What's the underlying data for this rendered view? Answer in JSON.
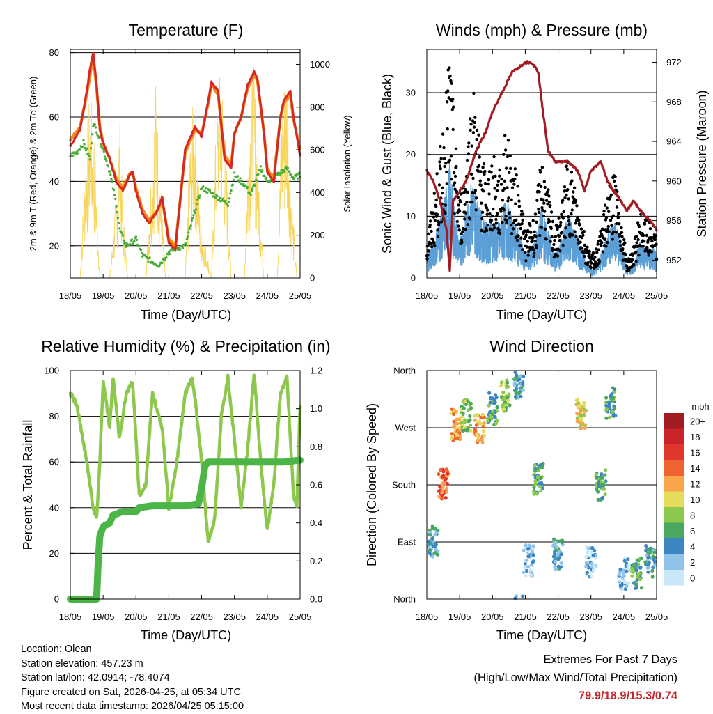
{
  "panels": {
    "temperature": {
      "title": "Temperature (F)",
      "ylabel_left": "2m & 9m T (Red, Orange) & 2m Td (Green)",
      "ylabel_right": "Solar Insolation (Yellow)",
      "xlabel": "Time (Day/UTC)"
    },
    "winds": {
      "title": "Winds (mph) & Pressure (mb)",
      "ylabel_left": "Sonic Wind & Gust (Blue, Black)",
      "ylabel_right": "Station Pressure (Maroon)",
      "xlabel": "Time (Day/UTC)"
    },
    "humidity": {
      "title": "Relative Humidity (%) & Precipitation (in)",
      "ylabel_left": "Percent & Total Rainfall",
      "xlabel": "Time (Day/UTC)"
    },
    "direction": {
      "title": "Wind Direction",
      "ylabel_left": "Direction (Colored By Speed)",
      "xlabel": "Time (Day/UTC)"
    }
  },
  "colors": {
    "temp2m": "#d42a22",
    "temp9m": "#f58a1f",
    "dewpoint": "#4cae3a",
    "solar": "#f7d55a",
    "gust": "#000000",
    "wind": "#5b9fd6",
    "pressure": "#a11c22",
    "rh": "#8cc84b",
    "precip": "#4cb547"
  },
  "chart_data": [
    {
      "type": "line",
      "title": "Temperature (F)",
      "xlabel": "Time (Day/UTC)",
      "ylabel": "2m & 9m T (Red, Orange) & 2m Td (Green)",
      "ylabel_right": "Solar Insolation (Yellow)",
      "x_ticks": [
        "18/05",
        "19/05",
        "20/05",
        "21/05",
        "22/05",
        "23/05",
        "24/05",
        "25/05"
      ],
      "xlim": [
        0,
        7
      ],
      "ylim": [
        10,
        81
      ],
      "y_ticks": [
        20,
        40,
        60,
        80
      ],
      "ylim_right": [
        0,
        1070
      ],
      "y_ticks_right": [
        0,
        200,
        400,
        600,
        800,
        1000
      ],
      "series": [
        {
          "name": "2m T",
          "x": [
            0,
            0.3,
            0.5,
            0.6,
            0.7,
            0.8,
            0.9,
            1.0,
            1.2,
            1.4,
            1.6,
            1.8,
            1.9,
            2.0,
            2.2,
            2.4,
            2.6,
            2.8,
            3.0,
            3.2,
            3.5,
            3.8,
            4.0,
            4.2,
            4.3,
            4.5,
            4.7,
            4.9,
            5.0,
            5.2,
            5.4,
            5.6,
            5.7,
            5.9,
            6.0,
            6.2,
            6.4,
            6.5,
            6.7,
            6.8,
            7.0
          ],
          "values": [
            51,
            56,
            68,
            75,
            80,
            70,
            56,
            52,
            47,
            40,
            37,
            42,
            43,
            37,
            30,
            27,
            30,
            35,
            21,
            19,
            50,
            57,
            54,
            65,
            71,
            68,
            47,
            44,
            55,
            60,
            70,
            74,
            72,
            55,
            43,
            40,
            60,
            65,
            68,
            60,
            48
          ]
        },
        {
          "name": "9m T",
          "x": [
            0,
            0.3,
            0.5,
            0.6,
            0.7,
            0.8,
            0.9,
            1.0,
            1.2,
            1.4,
            1.6,
            1.8,
            1.9,
            2.0,
            2.2,
            2.4,
            2.6,
            2.8,
            3.0,
            3.2,
            3.5,
            3.8,
            4.0,
            4.2,
            4.3,
            4.5,
            4.7,
            4.9,
            5.0,
            5.2,
            5.4,
            5.6,
            5.7,
            5.9,
            6.0,
            6.2,
            6.4,
            6.5,
            6.7,
            6.8,
            7.0
          ],
          "values": [
            53,
            57,
            67,
            73,
            78,
            69,
            57,
            52,
            47,
            41,
            38,
            42,
            43,
            38,
            31,
            28,
            30,
            34,
            22,
            20,
            49,
            56,
            55,
            64,
            70,
            67,
            48,
            45,
            55,
            60,
            69,
            73,
            71,
            55,
            44,
            41,
            60,
            64,
            67,
            59,
            50
          ]
        },
        {
          "name": "2m Td",
          "x": [
            0,
            0.2,
            0.4,
            0.6,
            0.7,
            0.8,
            1.0,
            1.2,
            1.4,
            1.5,
            1.7,
            2.0,
            2.2,
            2.5,
            2.7,
            3.0,
            3.2,
            3.5,
            3.8,
            4.0,
            4.2,
            4.5,
            4.8,
            5.0,
            5.3,
            5.5,
            5.8,
            6.0,
            6.3,
            6.6,
            6.8,
            7.0
          ],
          "values": [
            48,
            49,
            52,
            47,
            58,
            56,
            50,
            43,
            33,
            25,
            20,
            22,
            17,
            15,
            14,
            18,
            19,
            20,
            31,
            38,
            37,
            35,
            33,
            42,
            39,
            36,
            44,
            40,
            42,
            44,
            41,
            42
          ]
        },
        {
          "name": "Solar Insolation",
          "axis": "right",
          "x": [
            0,
            0.3,
            0.45,
            0.6,
            0.75,
            0.9,
            1.2,
            1.4,
            1.5,
            1.6,
            1.75,
            1.9,
            2.3,
            2.45,
            2.6,
            2.75,
            2.9,
            3.3,
            3.5,
            3.65,
            3.8,
            3.95,
            4.3,
            4.45,
            4.6,
            4.75,
            4.9,
            5.3,
            5.45,
            5.6,
            5.75,
            5.9,
            6.3,
            6.45,
            6.6,
            6.75,
            6.9,
            7.0
          ],
          "values": [
            0,
            0,
            600,
            900,
            650,
            0,
            0,
            400,
            800,
            350,
            0,
            0,
            0,
            500,
            950,
            450,
            0,
            0,
            0,
            700,
            900,
            300,
            0,
            800,
            1050,
            600,
            0,
            0,
            850,
            1000,
            500,
            0,
            0,
            900,
            1050,
            400,
            0,
            0
          ]
        }
      ]
    },
    {
      "type": "scatter",
      "title": "Winds (mph) & Pressure (mb)",
      "xlabel": "Time (Day/UTC)",
      "ylabel": "Sonic Wind & Gust (Blue, Black)",
      "ylabel_right": "Station Pressure (Maroon)",
      "x_ticks": [
        "18/05",
        "19/05",
        "20/05",
        "21/05",
        "22/05",
        "23/05",
        "24/05",
        "25/05"
      ],
      "xlim": [
        0,
        7
      ],
      "ylim": [
        0,
        37
      ],
      "y_ticks": [
        0,
        10,
        20,
        30
      ],
      "ylim_right": [
        950.2,
        973.3
      ],
      "y_ticks_right": [
        952,
        956,
        960,
        964,
        968,
        972
      ],
      "series": [
        {
          "name": "Gust",
          "x": [
            0,
            0.2,
            0.4,
            0.6,
            0.7,
            0.8,
            1.0,
            1.2,
            1.4,
            1.6,
            1.8,
            2.0,
            2.2,
            2.4,
            2.6,
            2.8,
            3.0,
            3.3,
            3.5,
            3.7,
            3.9,
            4.1,
            4.3,
            4.5,
            4.7,
            4.9,
            5.1,
            5.3,
            5.5,
            5.7,
            5.9,
            6.1,
            6.3,
            6.5,
            6.7,
            6.9,
            7.0
          ],
          "values": [
            5,
            10,
            16,
            24,
            30,
            22,
            10,
            16,
            25,
            18,
            13,
            16,
            13,
            19,
            15,
            12,
            6,
            8,
            16,
            11,
            6,
            9,
            16,
            12,
            8,
            4,
            3,
            6,
            11,
            14,
            9,
            2,
            4,
            9,
            7,
            7,
            5
          ]
        },
        {
          "name": "Wind",
          "x": [
            0,
            0.2,
            0.4,
            0.6,
            0.7,
            0.8,
            1.0,
            1.2,
            1.4,
            1.6,
            1.8,
            2.0,
            2.2,
            2.4,
            2.6,
            2.8,
            3.0,
            3.3,
            3.5,
            3.7,
            3.9,
            4.1,
            4.3,
            4.5,
            4.7,
            4.9,
            5.1,
            5.3,
            5.5,
            5.7,
            5.9,
            6.1,
            6.3,
            6.5,
            6.7,
            6.9,
            7.0
          ],
          "values": [
            3,
            5,
            8,
            12,
            15,
            10,
            5,
            9,
            13,
            9,
            7,
            8,
            7,
            10,
            8,
            6,
            3,
            5,
            9,
            6,
            3,
            5,
            9,
            6,
            4,
            2,
            1,
            3,
            6,
            8,
            5,
            1,
            2,
            5,
            4,
            4,
            3
          ]
        },
        {
          "name": "Station Pressure",
          "axis": "right",
          "x": [
            0,
            0.2,
            0.4,
            0.6,
            0.7,
            0.8,
            1.0,
            1.2,
            1.5,
            1.8,
            2.0,
            2.3,
            2.6,
            3.0,
            3.2,
            3.4,
            3.5,
            3.7,
            3.9,
            4.0,
            4.3,
            4.6,
            4.8,
            5.0,
            5.3,
            5.5,
            5.7,
            5.9,
            6.1,
            6.3,
            6.5,
            6.8,
            7.0
          ],
          "values": [
            961,
            960,
            958,
            955,
            951,
            958,
            959,
            960,
            963,
            965,
            967,
            969,
            971,
            972,
            972,
            971,
            968,
            963,
            962,
            962,
            962,
            961,
            959,
            961,
            962,
            960,
            959,
            958,
            957,
            958,
            957,
            956,
            955
          ]
        }
      ]
    },
    {
      "type": "line",
      "title": "Relative Humidity (%) & Precipitation (in)",
      "xlabel": "Time (Day/UTC)",
      "ylabel": "Percent & Total Rainfall",
      "x_ticks": [
        "18/05",
        "19/05",
        "20/05",
        "21/05",
        "22/05",
        "23/05",
        "24/05",
        "25/05"
      ],
      "xlim": [
        0,
        7
      ],
      "ylim": [
        0,
        100
      ],
      "y_ticks": [
        0,
        20,
        40,
        60,
        80,
        100
      ],
      "ylim_right": [
        0,
        1.2
      ],
      "y_ticks_right": [
        0.0,
        0.2,
        0.4,
        0.6,
        0.8,
        1.0,
        1.2
      ],
      "series": [
        {
          "name": "Relative Humidity",
          "x": [
            0,
            0.2,
            0.5,
            0.7,
            0.8,
            0.9,
            1.0,
            1.2,
            1.3,
            1.5,
            1.7,
            1.9,
            2.1,
            2.3,
            2.5,
            2.8,
            3.0,
            3.2,
            3.5,
            3.7,
            3.8,
            4.0,
            4.2,
            4.4,
            4.6,
            4.8,
            5.0,
            5.2,
            5.4,
            5.6,
            5.8,
            6.0,
            6.2,
            6.4,
            6.6,
            6.8,
            6.9,
            7.0
          ],
          "values": [
            90,
            85,
            60,
            40,
            35,
            60,
            96,
            75,
            97,
            70,
            90,
            95,
            45,
            50,
            90,
            75,
            40,
            55,
            90,
            97,
            88,
            60,
            25,
            35,
            80,
            97,
            70,
            40,
            65,
            99,
            60,
            30,
            50,
            90,
            97,
            45,
            40,
            85
          ]
        },
        {
          "name": "Total Precipitation",
          "axis": "right",
          "x": [
            0,
            0.5,
            0.8,
            0.85,
            0.9,
            1.0,
            1.2,
            1.3,
            1.6,
            2.0,
            2.1,
            2.5,
            3.0,
            3.5,
            3.9,
            4.0,
            4.1,
            4.2,
            4.5,
            5.0,
            5.5,
            6.0,
            6.5,
            7.0
          ],
          "values": [
            0,
            0,
            0,
            0.2,
            0.33,
            0.38,
            0.4,
            0.44,
            0.46,
            0.46,
            0.48,
            0.49,
            0.49,
            0.49,
            0.5,
            0.58,
            0.7,
            0.72,
            0.72,
            0.72,
            0.72,
            0.72,
            0.72,
            0.73
          ]
        }
      ]
    },
    {
      "type": "scatter",
      "title": "Wind Direction",
      "xlabel": "Time (Day/UTC)",
      "ylabel": "Direction (Colored By Speed)",
      "x_ticks": [
        "18/05",
        "19/05",
        "20/05",
        "21/05",
        "22/05",
        "23/05",
        "24/05",
        "25/05"
      ],
      "xlim": [
        0,
        7
      ],
      "y_ticks": [
        "North",
        "West",
        "South",
        "East",
        "North"
      ],
      "ylim_degrees": [
        0,
        360
      ],
      "clusters": [
        {
          "x": 0.2,
          "dir": 90,
          "speed": 4
        },
        {
          "x": 0.5,
          "dir": 180,
          "speed": 14
        },
        {
          "x": 0.9,
          "dir": 275,
          "speed": 12
        },
        {
          "x": 1.2,
          "dir": 290,
          "speed": 8
        },
        {
          "x": 1.6,
          "dir": 270,
          "speed": 12
        },
        {
          "x": 2.0,
          "dir": 300,
          "speed": 6
        },
        {
          "x": 2.4,
          "dir": 320,
          "speed": 8
        },
        {
          "x": 2.8,
          "dir": 340,
          "speed": 4
        },
        {
          "x": 3.1,
          "dir": 60,
          "speed": 2
        },
        {
          "x": 3.4,
          "dir": 190,
          "speed": 6
        },
        {
          "x": 4.0,
          "dir": 70,
          "speed": 4
        },
        {
          "x": 4.7,
          "dir": 290,
          "speed": 10
        },
        {
          "x": 5.0,
          "dir": 60,
          "speed": 2
        },
        {
          "x": 5.3,
          "dir": 180,
          "speed": 6
        },
        {
          "x": 5.6,
          "dir": 310,
          "speed": 6
        },
        {
          "x": 6.0,
          "dir": 40,
          "speed": 2
        },
        {
          "x": 6.4,
          "dir": 40,
          "speed": 6
        },
        {
          "x": 6.8,
          "dir": 60,
          "speed": 4
        }
      ],
      "colorbar": {
        "label": "mph",
        "levels": [
          "20+",
          "18",
          "16",
          "14",
          "12",
          "10",
          "8",
          "6",
          "4",
          "2",
          "0"
        ],
        "colors": [
          "#a11c22",
          "#c8242a",
          "#e0362d",
          "#ef6330",
          "#f8a54c",
          "#e4dc5a",
          "#8cc84b",
          "#4aa760",
          "#3d86c4",
          "#8fc4e8",
          "#c9e7f7"
        ]
      }
    }
  ],
  "info": {
    "location": "Location: Olean",
    "elevation": "Station elevation: 457.23 m",
    "latlon": "Station lat/lon: 42.0914; -78.4074",
    "created": "Figure created on Sat, 2026-04-25, at 05:34 UTC",
    "recent": "Most recent data timestamp: 2026/04/25 05:15:00"
  },
  "extremes": {
    "title": "Extremes For Past 7 Days",
    "subtitle": "(High/Low/Max Wind/Total Precipitation)",
    "values": "79.9/18.9/15.3/0.74"
  }
}
